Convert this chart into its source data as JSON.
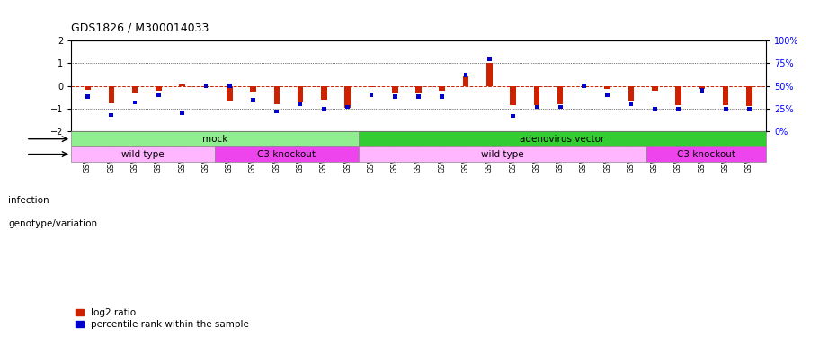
{
  "title": "GDS1826 / M300014033",
  "samples": [
    "GSM87316",
    "GSM87317",
    "GSM93998",
    "GSM93999",
    "GSM94000",
    "GSM94001",
    "GSM93633",
    "GSM93634",
    "GSM93651",
    "GSM93652",
    "GSM93653",
    "GSM93654",
    "GSM93657",
    "GSM86643",
    "GSM87306",
    "GSM87307",
    "GSM87308",
    "GSM87309",
    "GSM87310",
    "GSM87311",
    "GSM87312",
    "GSM87313",
    "GSM87314",
    "GSM87315",
    "GSM93655",
    "GSM93656",
    "GSM93658",
    "GSM93659",
    "GSM93660"
  ],
  "log2_ratio": [
    -0.18,
    -0.75,
    -0.35,
    -0.22,
    0.05,
    -0.04,
    -0.65,
    -0.25,
    -0.8,
    -0.72,
    -0.62,
    -0.95,
    -0.05,
    -0.3,
    -0.3,
    -0.22,
    0.42,
    1.02,
    -0.85,
    -0.85,
    -0.82,
    -0.05,
    -0.15,
    -0.65,
    -0.2,
    -0.85,
    -0.15,
    -0.85,
    -0.9
  ],
  "percentile_rank": [
    38,
    18,
    32,
    40,
    20,
    50,
    50,
    35,
    22,
    30,
    25,
    27,
    40,
    38,
    38,
    38,
    62,
    80,
    17,
    27,
    27,
    50,
    40,
    30,
    25,
    25,
    45,
    25,
    25
  ],
  "infection_groups": [
    {
      "label": "mock",
      "start": 0,
      "end": 12,
      "color": "#90EE90"
    },
    {
      "label": "adenovirus vector",
      "start": 12,
      "end": 29,
      "color": "#33CC33"
    }
  ],
  "genotype_groups": [
    {
      "label": "wild type",
      "start": 0,
      "end": 6,
      "color": "#FFB6FF"
    },
    {
      "label": "C3 knockout",
      "start": 6,
      "end": 12,
      "color": "#EE44EE"
    },
    {
      "label": "wild type",
      "start": 12,
      "end": 24,
      "color": "#FFB6FF"
    },
    {
      "label": "C3 knockout",
      "start": 24,
      "end": 29,
      "color": "#EE44EE"
    }
  ],
  "ylim": [
    -2,
    2
  ],
  "bar_color": "#CC2200",
  "dot_color": "#0000CC",
  "legend_items": [
    "log2 ratio",
    "percentile rank within the sample"
  ],
  "infection_label": "infection",
  "genotype_label": "genotype/variation"
}
